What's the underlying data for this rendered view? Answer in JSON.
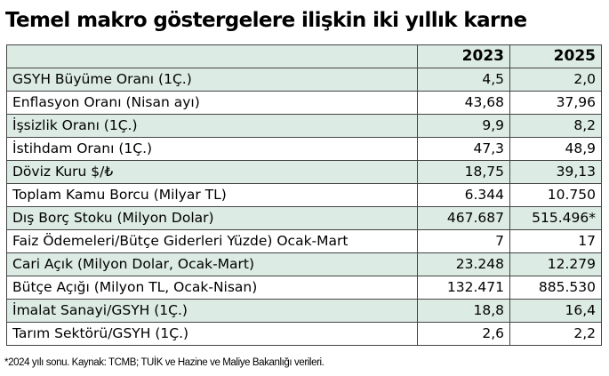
{
  "title": "Temel makro göstergelere ilişkin iki yıllık karne",
  "table": {
    "headers": [
      "",
      "2023",
      "2025"
    ],
    "rows": [
      {
        "label": "GSYH Büyüme Oranı (1Ç.)",
        "v2023": "4,5",
        "v2025": "2,0"
      },
      {
        "label": "Enflasyon Oranı (Nisan ayı)",
        "v2023": "43,68",
        "v2025": "37,96"
      },
      {
        "label": "İşsizlik Oranı (1Ç.)",
        "v2023": "9,9",
        "v2025": "8,2"
      },
      {
        "label": "İstihdam Oranı (1Ç.)",
        "v2023": "47,3",
        "v2025": "48,9"
      },
      {
        "label": "Döviz Kuru $/₺",
        "v2023": "18,75",
        "v2025": "39,13"
      },
      {
        "label": "Toplam Kamu Borcu (Milyar TL)",
        "v2023": "6.344",
        "v2025": "10.750"
      },
      {
        "label": "Dış Borç Stoku (Milyon Dolar)",
        "v2023": "467.687",
        "v2025": "515.496*"
      },
      {
        "label": "Faiz Ödemeleri/Bütçe Giderleri Yüzde) Ocak-Mart",
        "v2023": "7",
        "v2025": "17"
      },
      {
        "label": "Cari Açık (Milyon Dolar, Ocak-Mart)",
        "v2023": "23.248",
        "v2025": "12.279"
      },
      {
        "label": "Bütçe Açığı (Milyon TL, Ocak-Nisan)",
        "v2023": "132.471",
        "v2025": "885.530"
      },
      {
        "label": "İmalat Sanayi/GSYH (1Ç.)",
        "v2023": "18,8",
        "v2025": "16,4"
      },
      {
        "label": "Tarım Sektörü/GSYH (1Ç.)",
        "v2023": "2,6",
        "v2025": "2,2"
      }
    ]
  },
  "footnote": "*2024 yılı sonu. Kaynak: TCMB; TUİK ve Hazine ve Maliye Bakanlığı verileri.",
  "colors": {
    "row_shade": "#dcebe4",
    "border": "#444444"
  }
}
